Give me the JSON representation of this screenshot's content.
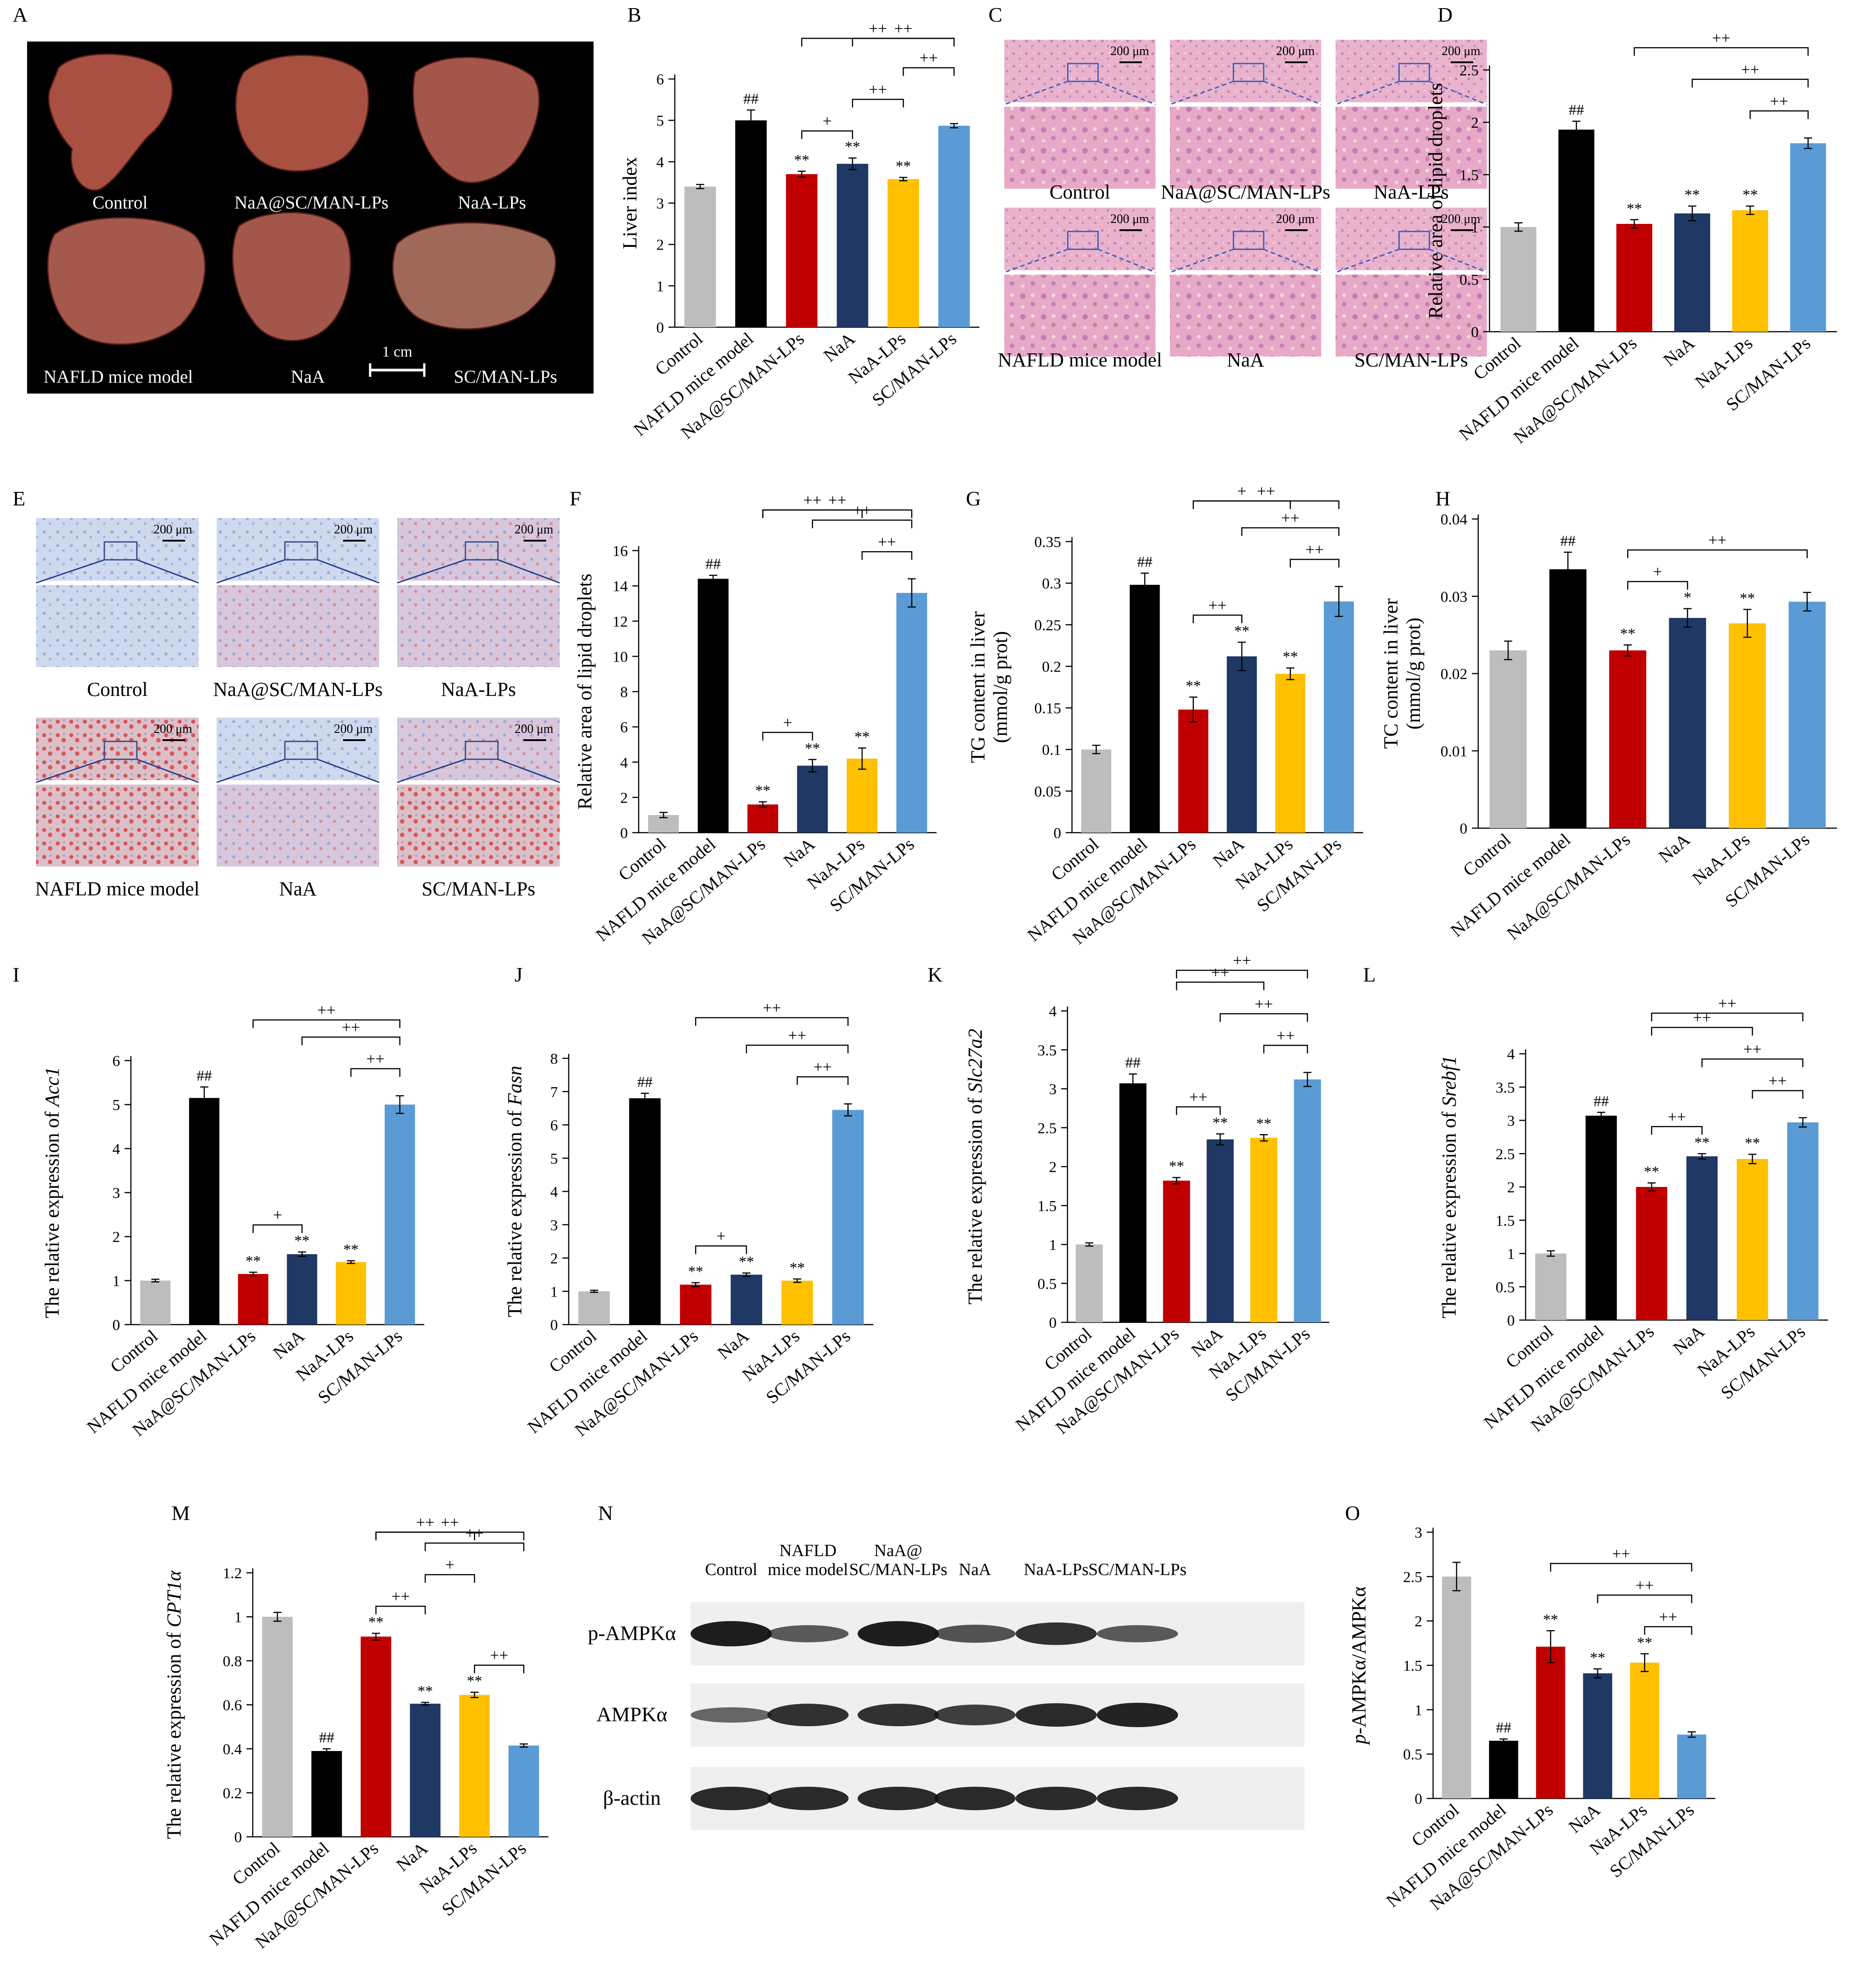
{
  "figure": {
    "colors": {
      "Control": "#bdbdbd",
      "NAFLD mice model": "#000000",
      "NaA@SC/MAN-LPs": "#c00000",
      "NaA": "#1f3864",
      "NaA-LPs": "#ffc000",
      "SC/MAN-LPs": "#5b9bd5",
      "he_stain": "#e8a6c4",
      "oil_red_stain": "#d0c4e6"
    }
  },
  "panels": {
    "A": {
      "letter": "A",
      "labels": [
        "Control",
        "NaA@SC/MAN-LPs",
        "NaA-LPs",
        "NAFLD mice model",
        "NaA",
        "SC/MAN-LPs"
      ],
      "scale_bar": "1 cm"
    },
    "C": {
      "letter": "C",
      "labels": [
        "Control",
        "NaA@SC/MAN-LPs",
        "NaA-LPs",
        "NAFLD mice model",
        "NaA",
        "SC/MAN-LPs"
      ],
      "scale": "200 μm"
    },
    "E": {
      "letter": "E",
      "labels": [
        "Control",
        "NaA@SC/MAN-LPs",
        "NaA-LPs",
        "NAFLD mice model",
        "NaA",
        "SC/MAN-LPs"
      ],
      "scale": "200 μm"
    },
    "N": {
      "letter": "N",
      "lanes": [
        "Control",
        "NAFLD\nmice model",
        "NaA@\nSC/MAN-LPs",
        "NaA",
        "NaA-LPs",
        "SC/MAN-LPs"
      ],
      "rows": [
        "p-AMPKα",
        "AMPKα",
        "β-actin"
      ]
    }
  },
  "chart_data": [
    {
      "id": "B",
      "type": "bar",
      "ylabel": "Liver index",
      "ylim": [
        0,
        6
      ],
      "yticks": [
        0,
        1,
        2,
        3,
        4,
        5,
        6
      ],
      "categories": [
        "Control",
        "NAFLD mice model",
        "NaA@SC/MAN-LPs",
        "NaA",
        "NaA-LPs",
        "SC/MAN-LPs"
      ],
      "values": [
        3.4,
        5.0,
        3.7,
        3.95,
        3.58,
        4.87
      ],
      "errors": [
        0.05,
        0.25,
        0.07,
        0.14,
        0.04,
        0.05
      ],
      "annotations": [
        "",
        "##",
        "**",
        "**",
        "**",
        ""
      ],
      "brackets": [
        {
          "from": 2,
          "to": 5,
          "label": "++"
        },
        {
          "from": 2,
          "to": 3,
          "label": "+"
        },
        {
          "from": 3,
          "to": 5,
          "label": "++"
        },
        {
          "from": 3,
          "to": 4,
          "label": "++"
        },
        {
          "from": 4,
          "to": 5,
          "label": "++"
        }
      ]
    },
    {
      "id": "D",
      "type": "bar",
      "ylabel": "Relative area of lipid droplets",
      "ylim": [
        0,
        2.5
      ],
      "yticks": [
        0,
        0.5,
        1,
        1.5,
        2,
        2.5
      ],
      "categories": [
        "Control",
        "NAFLD mice model",
        "NaA@SC/MAN-LPs",
        "NaA",
        "NaA-LPs",
        "SC/MAN-LPs"
      ],
      "values": [
        1.0,
        1.93,
        1.03,
        1.13,
        1.16,
        1.8
      ],
      "errors": [
        0.04,
        0.08,
        0.04,
        0.07,
        0.04,
        0.05
      ],
      "annotations": [
        "",
        "##",
        "**",
        "**",
        "**",
        ""
      ],
      "brackets": [
        {
          "from": 2,
          "to": 5,
          "label": "++"
        },
        {
          "from": 3,
          "to": 5,
          "label": "++"
        },
        {
          "from": 4,
          "to": 5,
          "label": "++"
        }
      ]
    },
    {
      "id": "F",
      "type": "bar",
      "ylabel": "Relative area of lipid droplets",
      "ylim": [
        0,
        16
      ],
      "yticks": [
        0,
        2,
        4,
        6,
        8,
        10,
        12,
        14,
        16
      ],
      "categories": [
        "Control",
        "NAFLD mice model",
        "NaA@SC/MAN-LPs",
        "NaA",
        "NaA-LPs",
        "SC/MAN-LPs"
      ],
      "values": [
        1.0,
        14.4,
        1.6,
        3.8,
        4.2,
        13.6
      ],
      "errors": [
        0.15,
        0.2,
        0.15,
        0.35,
        0.6,
        0.8
      ],
      "annotations": [
        "",
        "##",
        "**",
        "**",
        "**",
        ""
      ],
      "brackets": [
        {
          "from": 2,
          "to": 5,
          "label": "++"
        },
        {
          "from": 3,
          "to": 5,
          "label": "++"
        },
        {
          "from": 4,
          "to": 5,
          "label": "++"
        },
        {
          "from": 2,
          "to": 4,
          "label": "++"
        },
        {
          "from": 2,
          "to": 3,
          "label": "+"
        }
      ]
    },
    {
      "id": "G",
      "type": "bar",
      "ylabel": "TG content in liver\n(mmol/g prot)",
      "ylim": [
        0,
        0.35
      ],
      "yticks": [
        0,
        0.05,
        0.1,
        0.15,
        0.2,
        0.25,
        0.3,
        0.35
      ],
      "categories": [
        "Control",
        "NAFLD mice model",
        "NaA@SC/MAN-LPs",
        "NaA",
        "NaA-LPs",
        "SC/MAN-LPs"
      ],
      "values": [
        0.1,
        0.298,
        0.148,
        0.212,
        0.191,
        0.278
      ],
      "errors": [
        0.005,
        0.014,
        0.015,
        0.017,
        0.007,
        0.018
      ],
      "annotations": [
        "",
        "##",
        "**",
        "**",
        "**",
        ""
      ],
      "brackets": [
        {
          "from": 2,
          "to": 5,
          "label": "++"
        },
        {
          "from": 2,
          "to": 3,
          "label": "++"
        },
        {
          "from": 3,
          "to": 5,
          "label": "++"
        },
        {
          "from": 2,
          "to": 4,
          "label": "+"
        },
        {
          "from": 4,
          "to": 5,
          "label": "++"
        }
      ]
    },
    {
      "id": "H",
      "type": "bar",
      "ylabel": "TC content in liver\n(mmol/g prot)",
      "ylim": [
        0,
        0.04
      ],
      "yticks": [
        0,
        0.01,
        0.02,
        0.03,
        0.04
      ],
      "categories": [
        "Control",
        "NAFLD mice model",
        "NaA@SC/MAN-LPs",
        "NaA",
        "NaA-LPs",
        "SC/MAN-LPs"
      ],
      "values": [
        0.023,
        0.0335,
        0.023,
        0.0272,
        0.0265,
        0.0293
      ],
      "errors": [
        0.0012,
        0.0022,
        0.0007,
        0.0012,
        0.0018,
        0.0012
      ],
      "annotations": [
        "",
        "##",
        "**",
        "*",
        "**",
        ""
      ],
      "brackets": [
        {
          "from": 2,
          "to": 5,
          "label": "++"
        },
        {
          "from": 2,
          "to": 3,
          "label": "+"
        }
      ]
    },
    {
      "id": "I",
      "type": "bar",
      "ylabel": "The relative  expression of Acc1",
      "ylabel_plain": "The relative  expression of ",
      "ylabel_gene": "Acc1",
      "ylim": [
        0,
        6
      ],
      "yticks": [
        0,
        1,
        2,
        3,
        4,
        5,
        6
      ],
      "categories": [
        "Control",
        "NAFLD mice model",
        "NaA@SC/MAN-LPs",
        "NaA",
        "NaA-LPs",
        "SC/MAN-LPs"
      ],
      "values": [
        1.0,
        5.15,
        1.15,
        1.6,
        1.42,
        5.0
      ],
      "errors": [
        0.03,
        0.25,
        0.04,
        0.05,
        0.03,
        0.2
      ],
      "annotations": [
        "",
        "##",
        "**",
        "**",
        "**",
        ""
      ],
      "brackets": [
        {
          "from": 2,
          "to": 5,
          "label": "++"
        },
        {
          "from": 3,
          "to": 5,
          "label": "++"
        },
        {
          "from": 4,
          "to": 5,
          "label": "++"
        },
        {
          "from": 2,
          "to": 3,
          "label": "+"
        }
      ]
    },
    {
      "id": "J",
      "type": "bar",
      "ylabel": "The relative expression of Fasn",
      "ylabel_plain": "The relative expression of ",
      "ylabel_gene": "Fasn",
      "ylim": [
        0,
        8
      ],
      "yticks": [
        0,
        1,
        2,
        3,
        4,
        5,
        6,
        7,
        8
      ],
      "categories": [
        "Control",
        "NAFLD mice model",
        "NaA@SC/MAN-LPs",
        "NaA",
        "NaA-LPs",
        "SC/MAN-LPs"
      ],
      "values": [
        1.0,
        6.8,
        1.2,
        1.5,
        1.32,
        6.45
      ],
      "errors": [
        0.03,
        0.15,
        0.06,
        0.05,
        0.05,
        0.18
      ],
      "annotations": [
        "",
        "##",
        "**",
        "**",
        "**",
        ""
      ],
      "brackets": [
        {
          "from": 2,
          "to": 5,
          "label": "++"
        },
        {
          "from": 3,
          "to": 5,
          "label": "++"
        },
        {
          "from": 4,
          "to": 5,
          "label": "++"
        },
        {
          "from": 2,
          "to": 3,
          "label": "+"
        }
      ]
    },
    {
      "id": "K",
      "type": "bar",
      "ylabel": "The relative expression of Slc27a2",
      "ylabel_plain": "The relative expression of ",
      "ylabel_gene": "Slc27a2",
      "ylim": [
        0,
        4
      ],
      "yticks": [
        0,
        0.5,
        1,
        1.5,
        2,
        2.5,
        3,
        3.5,
        4
      ],
      "categories": [
        "Control",
        "NAFLD mice model",
        "NaA@SC/MAN-LPs",
        "NaA",
        "NaA-LPs",
        "SC/MAN-LPs"
      ],
      "values": [
        1.0,
        3.07,
        1.82,
        2.35,
        2.37,
        3.12
      ],
      "errors": [
        0.02,
        0.12,
        0.04,
        0.07,
        0.04,
        0.09
      ],
      "annotations": [
        "",
        "##",
        "**",
        "**",
        "**",
        ""
      ],
      "brackets": [
        {
          "from": 2,
          "to": 5,
          "label": "++"
        },
        {
          "from": 2,
          "to": 3,
          "label": "++"
        },
        {
          "from": 3,
          "to": 5,
          "label": "++"
        },
        {
          "from": 2,
          "to": 4,
          "label": "++"
        },
        {
          "from": 4,
          "to": 5,
          "label": "++"
        }
      ]
    },
    {
      "id": "L",
      "type": "bar",
      "ylabel": "The relative expression of Srebf1",
      "ylabel_plain": "The relative expression of ",
      "ylabel_gene": "Srebf1",
      "ylim": [
        0,
        4
      ],
      "yticks": [
        0,
        0.5,
        1,
        1.5,
        2,
        2.5,
        3,
        3.5,
        4
      ],
      "categories": [
        "Control",
        "NAFLD mice model",
        "NaA@SC/MAN-LPs",
        "NaA",
        "NaA-LPs",
        "SC/MAN-LPs"
      ],
      "values": [
        1.0,
        3.07,
        2.0,
        2.46,
        2.42,
        2.97
      ],
      "errors": [
        0.04,
        0.05,
        0.06,
        0.04,
        0.07,
        0.07
      ],
      "annotations": [
        "",
        "##",
        "**",
        "**",
        "**",
        ""
      ],
      "brackets": [
        {
          "from": 2,
          "to": 5,
          "label": "++"
        },
        {
          "from": 2,
          "to": 3,
          "label": "++"
        },
        {
          "from": 3,
          "to": 5,
          "label": "++"
        },
        {
          "from": 2,
          "to": 4,
          "label": "++"
        },
        {
          "from": 4,
          "to": 5,
          "label": "++"
        }
      ]
    },
    {
      "id": "M",
      "type": "bar",
      "ylabel": "The relative expression of CPT1α",
      "ylabel_plain": "The relative expression of ",
      "ylabel_gene": "CPT1α",
      "ylim": [
        0,
        1.2
      ],
      "yticks": [
        0,
        0.2,
        0.4,
        0.6,
        0.8,
        1,
        1.2
      ],
      "categories": [
        "Control",
        "NAFLD mice model",
        "NaA@SC/MAN-LPs",
        "NaA",
        "NaA-LPs",
        "SC/MAN-LPs"
      ],
      "values": [
        1.0,
        0.39,
        0.91,
        0.605,
        0.645,
        0.415
      ],
      "errors": [
        0.02,
        0.01,
        0.015,
        0.006,
        0.012,
        0.007
      ],
      "annotations": [
        "",
        "##",
        "**",
        "**",
        "**",
        ""
      ],
      "brackets": [
        {
          "from": 2,
          "to": 5,
          "label": "++"
        },
        {
          "from": 2,
          "to": 3,
          "label": "++"
        },
        {
          "from": 3,
          "to": 5,
          "label": "++"
        },
        {
          "from": 2,
          "to": 4,
          "label": "++"
        },
        {
          "from": 4,
          "to": 5,
          "label": "++"
        },
        {
          "from": 3,
          "to": 4,
          "label": "+"
        }
      ]
    },
    {
      "id": "O",
      "type": "bar",
      "ylabel": "p-AMPKα/AMPKα",
      "ylabel_italic": "p",
      "ylabel_rest": "-AMPKα/AMPKα",
      "ylim": [
        0,
        3
      ],
      "yticks": [
        0,
        0.5,
        1,
        1.5,
        2,
        2.5,
        3
      ],
      "categories": [
        "Control",
        "NAFLD mice model",
        "NaA@SC/MAN-LPs",
        "NaA",
        "NaA-LPs",
        "SC/MAN-LPs"
      ],
      "values": [
        2.5,
        0.65,
        1.71,
        1.41,
        1.53,
        0.72
      ],
      "errors": [
        0.16,
        0.02,
        0.18,
        0.05,
        0.1,
        0.03
      ],
      "annotations": [
        "",
        "##",
        "**",
        "**",
        "**",
        ""
      ],
      "brackets": [
        {
          "from": 2,
          "to": 5,
          "label": "++"
        },
        {
          "from": 3,
          "to": 5,
          "label": "++"
        },
        {
          "from": 4,
          "to": 5,
          "label": "++"
        }
      ]
    }
  ]
}
